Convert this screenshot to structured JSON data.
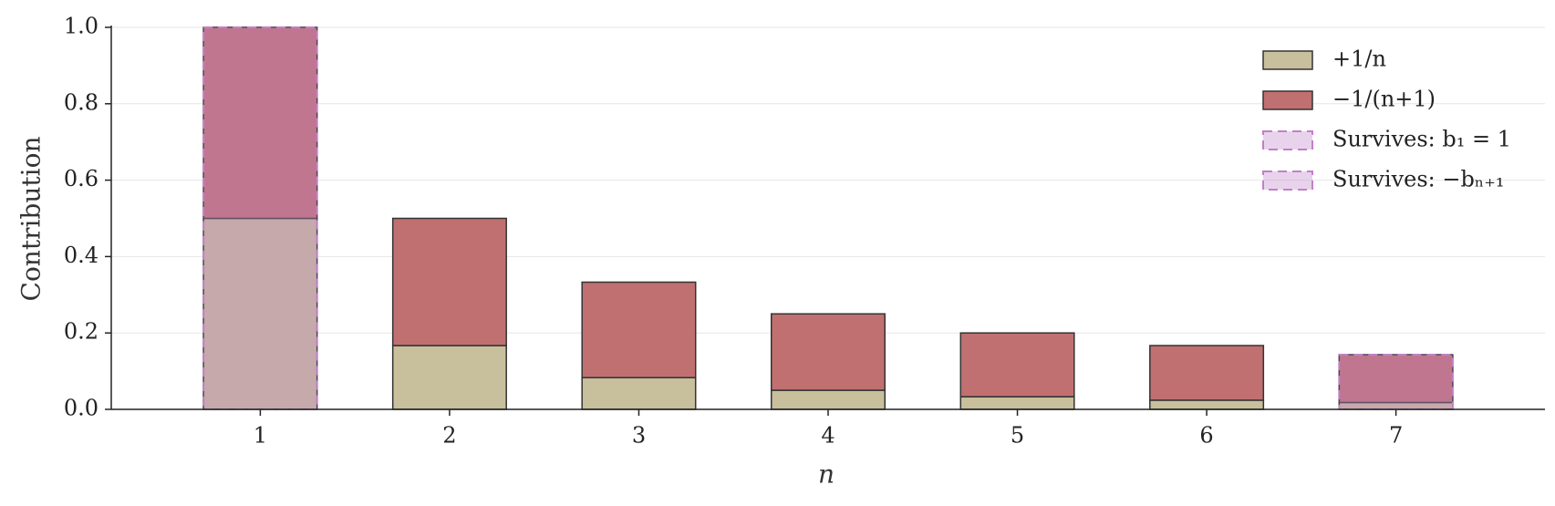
{
  "chart_data": {
    "type": "stacked_bar",
    "xlabel": "n",
    "ylabel": "Contribution",
    "categories": [
      "1",
      "2",
      "3",
      "4",
      "5",
      "6",
      "7"
    ],
    "series": [
      {
        "name": "+1/n",
        "color": "#c8bf9c",
        "values": [
          0.5,
          0.167,
          0.083,
          0.05,
          0.033,
          0.024,
          0.018
        ]
      },
      {
        "name": "−1/(n+1)",
        "color": "#c07070",
        "values": [
          0.5,
          0.333,
          0.25,
          0.2,
          0.167,
          0.143,
          0.125
        ]
      }
    ],
    "overlays": [
      {
        "name": "Survives: b₁ = 1",
        "color": "#c080c8",
        "values": [
          1.0,
          null,
          null,
          null,
          null,
          null,
          null
        ]
      },
      {
        "name": "Survives: −bₙ₊₁",
        "color": "#c080c8",
        "values": [
          null,
          null,
          null,
          null,
          null,
          null,
          0.143
        ]
      }
    ],
    "ylim": [
      0,
      1.0
    ],
    "yticks": [
      {
        "value": 0,
        "label": "0.0"
      },
      0.2,
      0.4,
      0.6,
      0.8,
      {
        "value": 1.0,
        "label": "1.0"
      }
    ],
    "grid": true,
    "legend": "upper right"
  }
}
